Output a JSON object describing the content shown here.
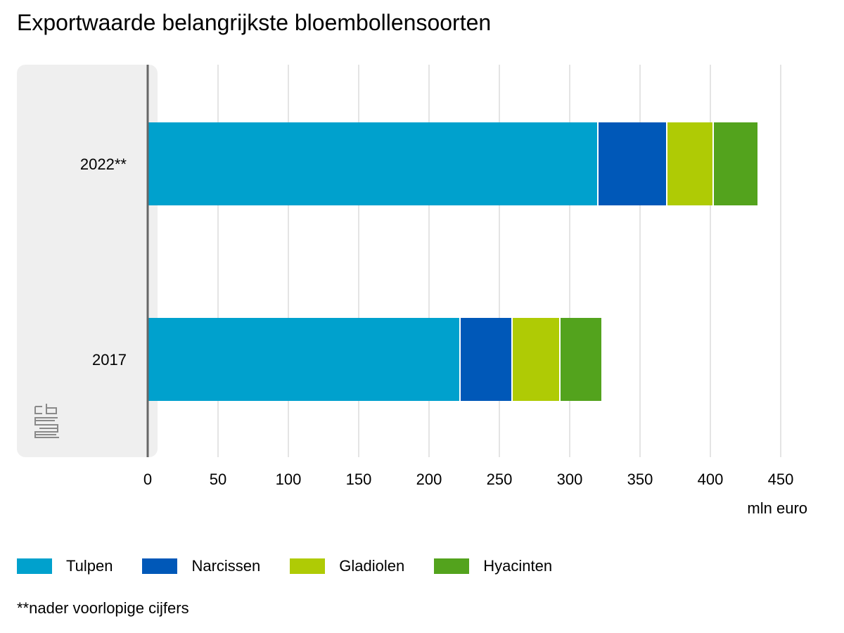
{
  "chart_data": {
    "type": "bar",
    "orientation": "horizontal",
    "stacked": true,
    "title": "Exportwaarde belangrijkste bloembollensoorten",
    "xlabel": "mln euro",
    "ylabel": "",
    "xlim": [
      0,
      450
    ],
    "xticks": [
      0,
      50,
      100,
      150,
      200,
      250,
      300,
      350,
      400,
      450
    ],
    "categories": [
      "2022**",
      "2017"
    ],
    "series": [
      {
        "name": "Tulpen",
        "color": "#00a1cd",
        "values": [
          320,
          222
        ]
      },
      {
        "name": "Narcissen",
        "color": "#0058b8",
        "values": [
          49,
          37
        ]
      },
      {
        "name": "Gladiolen",
        "color": "#afcb05",
        "values": [
          33,
          34
        ]
      },
      {
        "name": "Hyacinten",
        "color": "#53a31d",
        "values": [
          32,
          30
        ]
      }
    ],
    "grid": true,
    "legend": "bottom-left",
    "footnote": "**nader voorlopige cijfers"
  }
}
